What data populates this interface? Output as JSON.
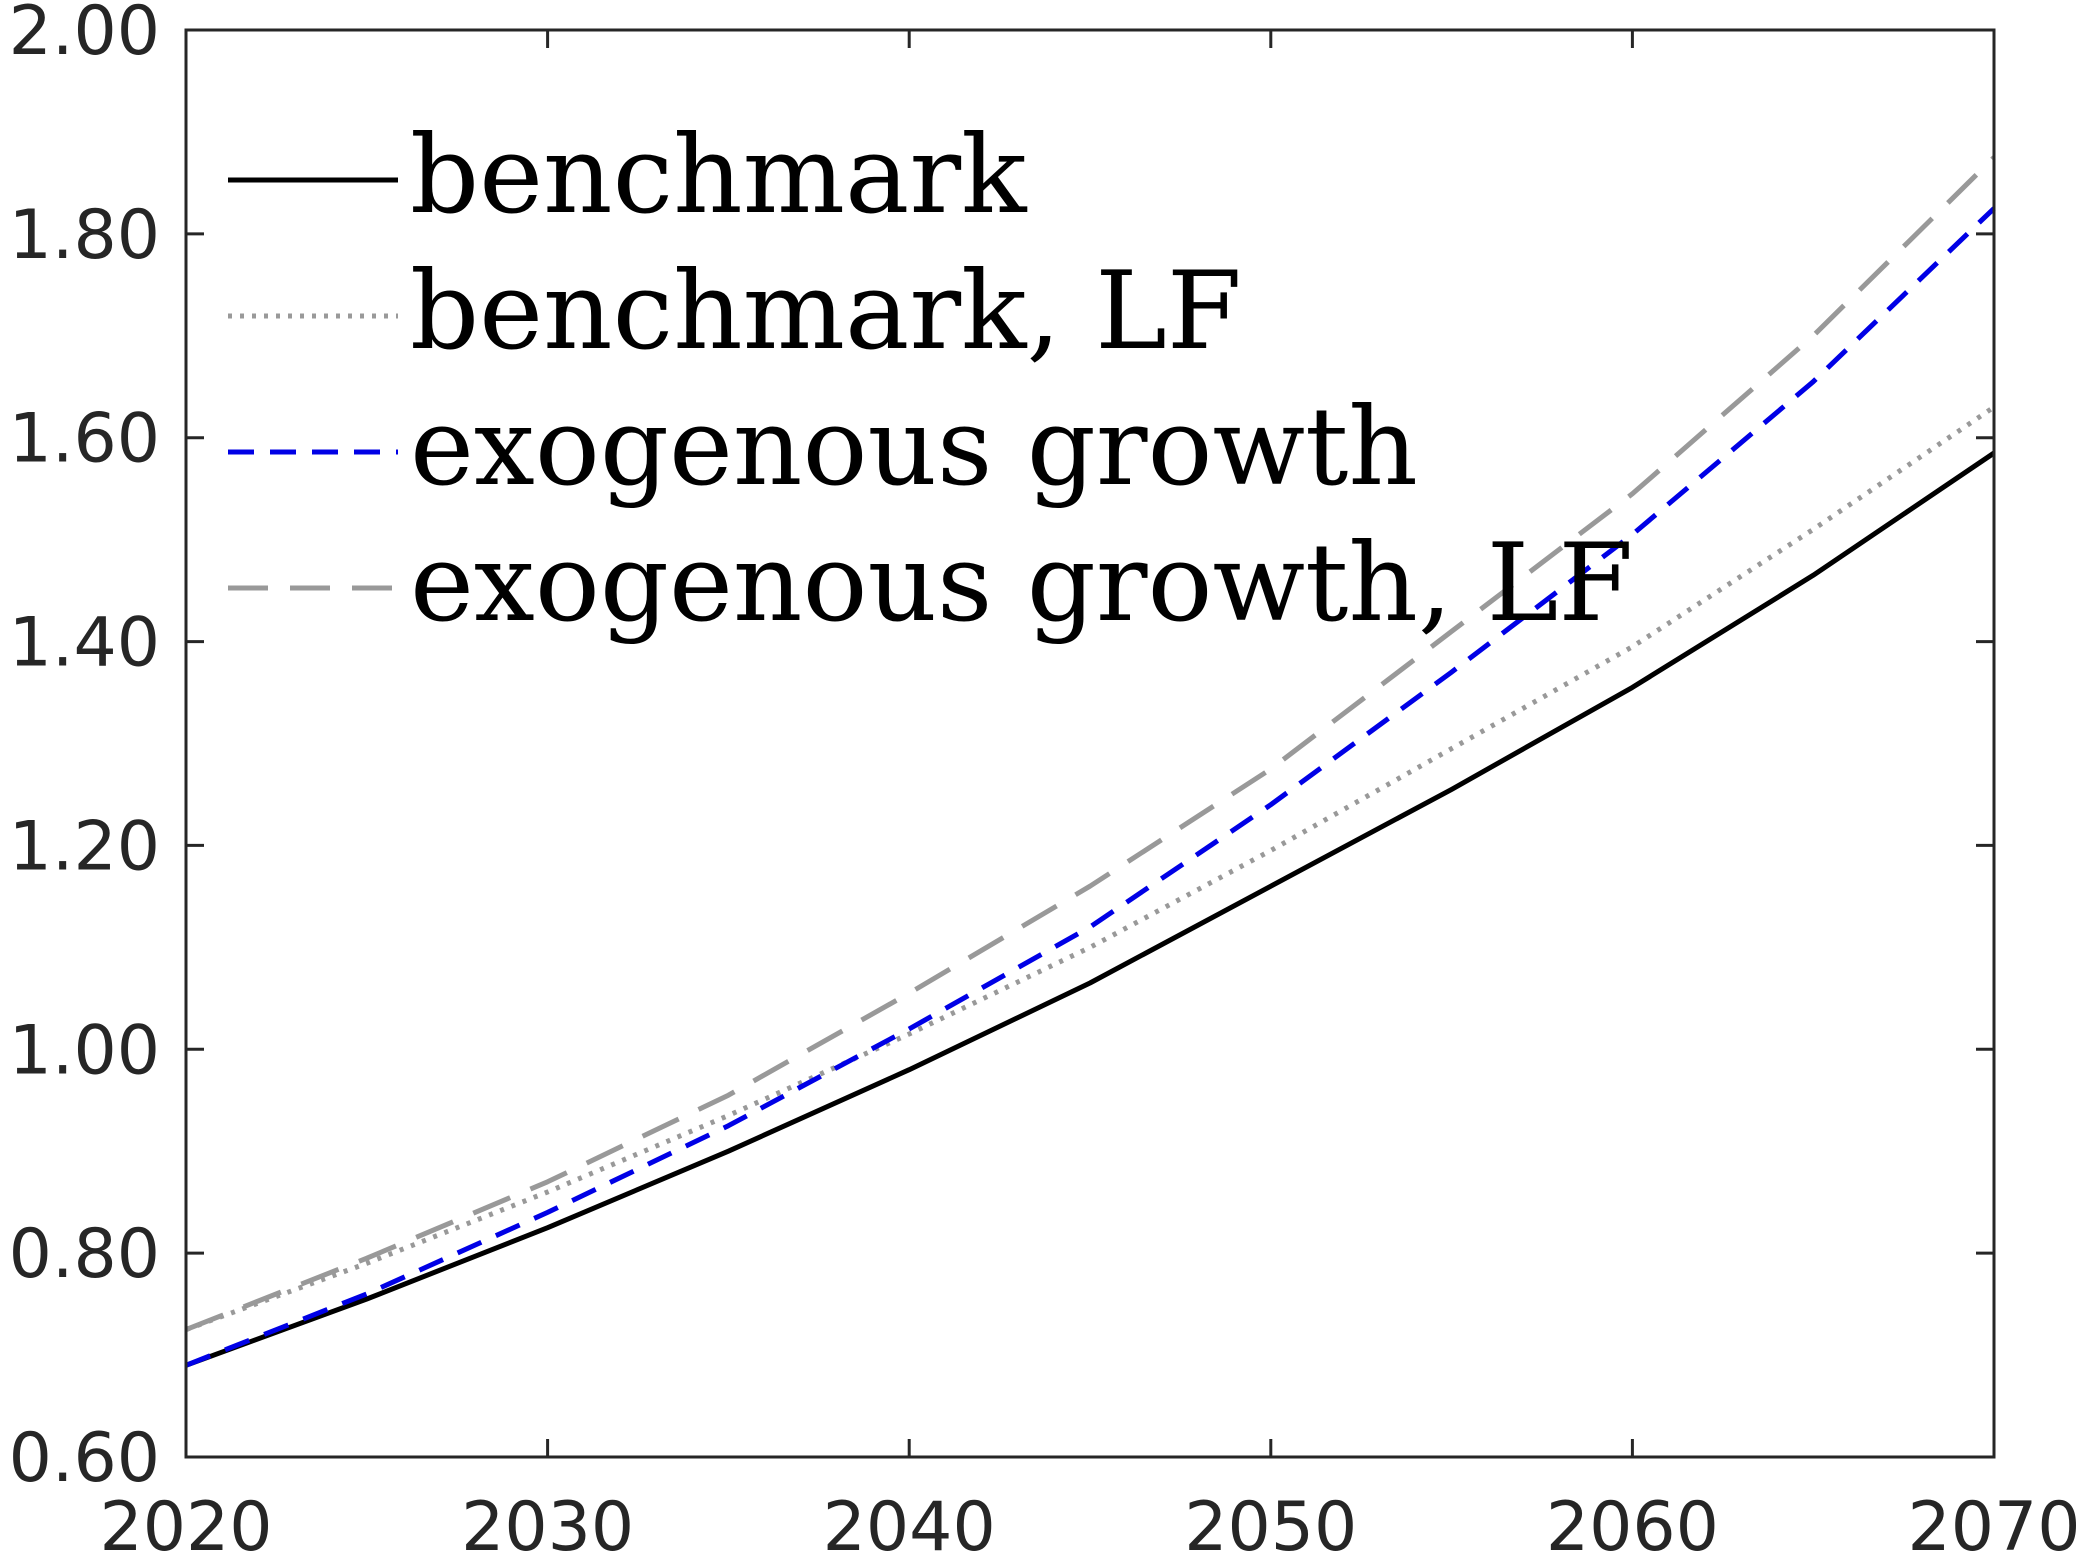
{
  "chart_data": {
    "type": "line",
    "title": "",
    "xlabel": "",
    "ylabel": "",
    "xlim": [
      2020,
      2070
    ],
    "ylim": [
      0.6,
      2.0
    ],
    "xticks": [
      2020,
      2030,
      2040,
      2050,
      2060,
      2070
    ],
    "xtick_labels": [
      "2020",
      "2030",
      "2040",
      "2050",
      "2060",
      "2070"
    ],
    "yticks": [
      0.6,
      0.8,
      1.0,
      1.2,
      1.4,
      1.6,
      1.8,
      2.0
    ],
    "ytick_labels": [
      "0.60",
      "0.80",
      "1.00",
      "1.20",
      "1.40",
      "1.60",
      "1.80",
      "2.00"
    ],
    "grid": false,
    "legend": "top-left",
    "x": [
      2020,
      2025,
      2030,
      2035,
      2040,
      2045,
      2050,
      2055,
      2060,
      2065,
      2070
    ],
    "series": [
      {
        "name": "benchmark",
        "color": "#000000",
        "style": "solid",
        "values": [
          0.69,
          0.755,
          0.825,
          0.9,
          0.98,
          1.065,
          1.16,
          1.255,
          1.355,
          1.465,
          1.585
        ]
      },
      {
        "name": "benchmark, LF",
        "color": "#999999",
        "style": "dotted",
        "values": [
          0.725,
          0.79,
          0.86,
          0.935,
          1.015,
          1.1,
          1.195,
          1.295,
          1.395,
          1.51,
          1.63
        ]
      },
      {
        "name": "exogenous growth",
        "color": "#0000e6",
        "style": "dashed",
        "values": [
          0.69,
          0.76,
          0.84,
          0.925,
          1.02,
          1.12,
          1.24,
          1.37,
          1.505,
          1.655,
          1.825
        ]
      },
      {
        "name": "exogenous growth, LF",
        "color": "#999999",
        "style": "longdash",
        "values": [
          0.725,
          0.795,
          0.87,
          0.955,
          1.055,
          1.16,
          1.275,
          1.41,
          1.545,
          1.7,
          1.875
        ]
      }
    ]
  }
}
